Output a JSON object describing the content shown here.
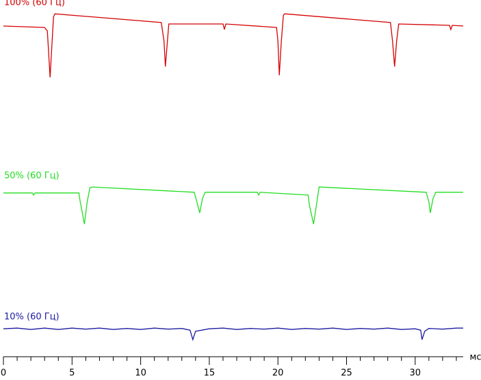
{
  "chart_data": {
    "type": "line",
    "x_unit": "мс",
    "xlim": [
      0,
      33.5
    ],
    "xticks": [
      0,
      5,
      10,
      15,
      20,
      25,
      30
    ],
    "xticks_minor": [
      1,
      2,
      3,
      4,
      6,
      7,
      8,
      9,
      11,
      12,
      13,
      14,
      16,
      17,
      18,
      19,
      21,
      22,
      23,
      24,
      26,
      27,
      28,
      29,
      31,
      32,
      33
    ],
    "ylim": [
      0,
      100
    ],
    "series": [
      {
        "name": "100% (60 Гц)",
        "color": "#d40000",
        "x": [
          0,
          3.0,
          3.2,
          3.4,
          3.55,
          3.65,
          3.75,
          11.5,
          11.7,
          11.8,
          11.95,
          12.05,
          16.0,
          16.1,
          16.2,
          19.9,
          20.0,
          20.1,
          20.25,
          20.4,
          20.5,
          28.2,
          28.35,
          28.5,
          28.65,
          28.8,
          32.5,
          32.6,
          32.7,
          33.5
        ],
        "values": [
          94.7,
          94.3,
          93.3,
          80.0,
          90.4,
          97.3,
          98.2,
          95.7,
          90.4,
          83.1,
          90.4,
          95.3,
          95.3,
          93.7,
          95.3,
          94.3,
          90.4,
          80.6,
          90.4,
          97.8,
          98.2,
          95.7,
          90.4,
          83.1,
          90.4,
          95.3,
          94.9,
          93.7,
          94.9,
          94.7
        ]
      },
      {
        "name": "50% (60 Гц)",
        "color": "#22dd22",
        "x": [
          0,
          2.1,
          2.2,
          2.3,
          5.5,
          5.6,
          5.9,
          6.1,
          6.3,
          6.5,
          13.9,
          14.1,
          14.3,
          14.5,
          14.7,
          18.5,
          18.6,
          18.7,
          22.2,
          22.3,
          22.6,
          22.8,
          23.0,
          30.8,
          31.0,
          31.1,
          31.3,
          31.5,
          33.5
        ],
        "values": [
          46.9,
          46.9,
          46.3,
          46.9,
          46.9,
          44.3,
          38.0,
          44.3,
          48.4,
          48.6,
          47.1,
          44.3,
          41.2,
          45.3,
          47.1,
          47.1,
          46.3,
          47.1,
          46.3,
          43.3,
          38.0,
          43.3,
          48.6,
          47.1,
          44.3,
          41.2,
          45.3,
          47.1,
          47.1
        ]
      },
      {
        "name": "10% (60 Гц)",
        "color": "#1a1aa0",
        "x": [
          0,
          1,
          2,
          3,
          4,
          5,
          6,
          7,
          8,
          9,
          10,
          11,
          12,
          13,
          13.6,
          13.8,
          14.0,
          15,
          16,
          17,
          18,
          19,
          20,
          21,
          22,
          23,
          24,
          25,
          26,
          27,
          28,
          29,
          30,
          30.4,
          30.5,
          30.7,
          31,
          32,
          33,
          33.5
        ],
        "values": [
          8.0,
          8.2,
          7.8,
          8.2,
          7.8,
          8.2,
          7.9,
          8.2,
          7.8,
          8.1,
          7.8,
          8.2,
          7.9,
          8.1,
          7.6,
          4.9,
          7.3,
          8.0,
          8.2,
          7.8,
          8.1,
          7.9,
          8.2,
          7.8,
          8.1,
          7.9,
          8.2,
          7.8,
          8.1,
          7.9,
          8.2,
          7.8,
          8.0,
          7.6,
          4.9,
          7.3,
          8.1,
          7.9,
          8.2,
          8.2
        ]
      }
    ]
  }
}
